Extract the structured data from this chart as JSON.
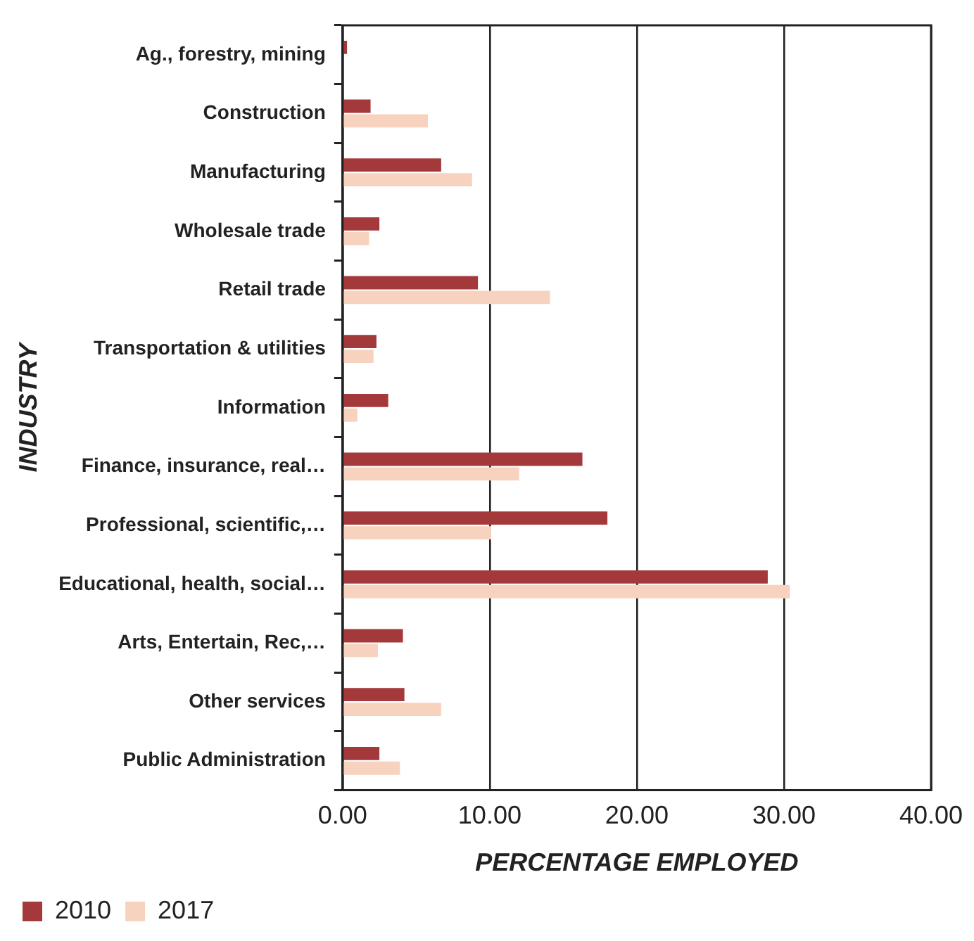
{
  "chart_data": {
    "type": "bar",
    "orientation": "horizontal",
    "xlabel": "PERCENTAGE EMPLOYED",
    "ylabel": "INDUSTRY",
    "categories": [
      "Ag., forestry, mining",
      "Construction",
      "Manufacturing",
      "Wholesale trade",
      "Retail trade",
      "Transportation & utilities",
      "Information",
      "Finance, insurance, real…",
      "Professional, scientific,…",
      "Educational, health, social…",
      "Arts, Entertain, Rec,…",
      "Other services",
      "Public Administration"
    ],
    "series": [
      {
        "name": "2010",
        "color": "#a3393b",
        "values": [
          0.3,
          1.9,
          6.7,
          2.5,
          9.2,
          2.3,
          3.1,
          16.3,
          18.0,
          28.9,
          4.1,
          4.2,
          2.5
        ]
      },
      {
        "name": "2017",
        "color": "#f7d3bf",
        "values": [
          0,
          5.8,
          8.8,
          1.8,
          14.1,
          2.1,
          1.0,
          12.0,
          10.1,
          30.4,
          2.4,
          6.7,
          3.9
        ]
      }
    ],
    "xlim": [
      0,
      40
    ],
    "xticks": [
      {
        "value": 0,
        "label": "0.00"
      },
      {
        "value": 10,
        "label": "10.00"
      },
      {
        "value": 20,
        "label": "20.00"
      },
      {
        "value": 30,
        "label": "30.00"
      },
      {
        "value": 40,
        "label": "40.00"
      }
    ],
    "grid": "x",
    "legend": "bottom left"
  }
}
